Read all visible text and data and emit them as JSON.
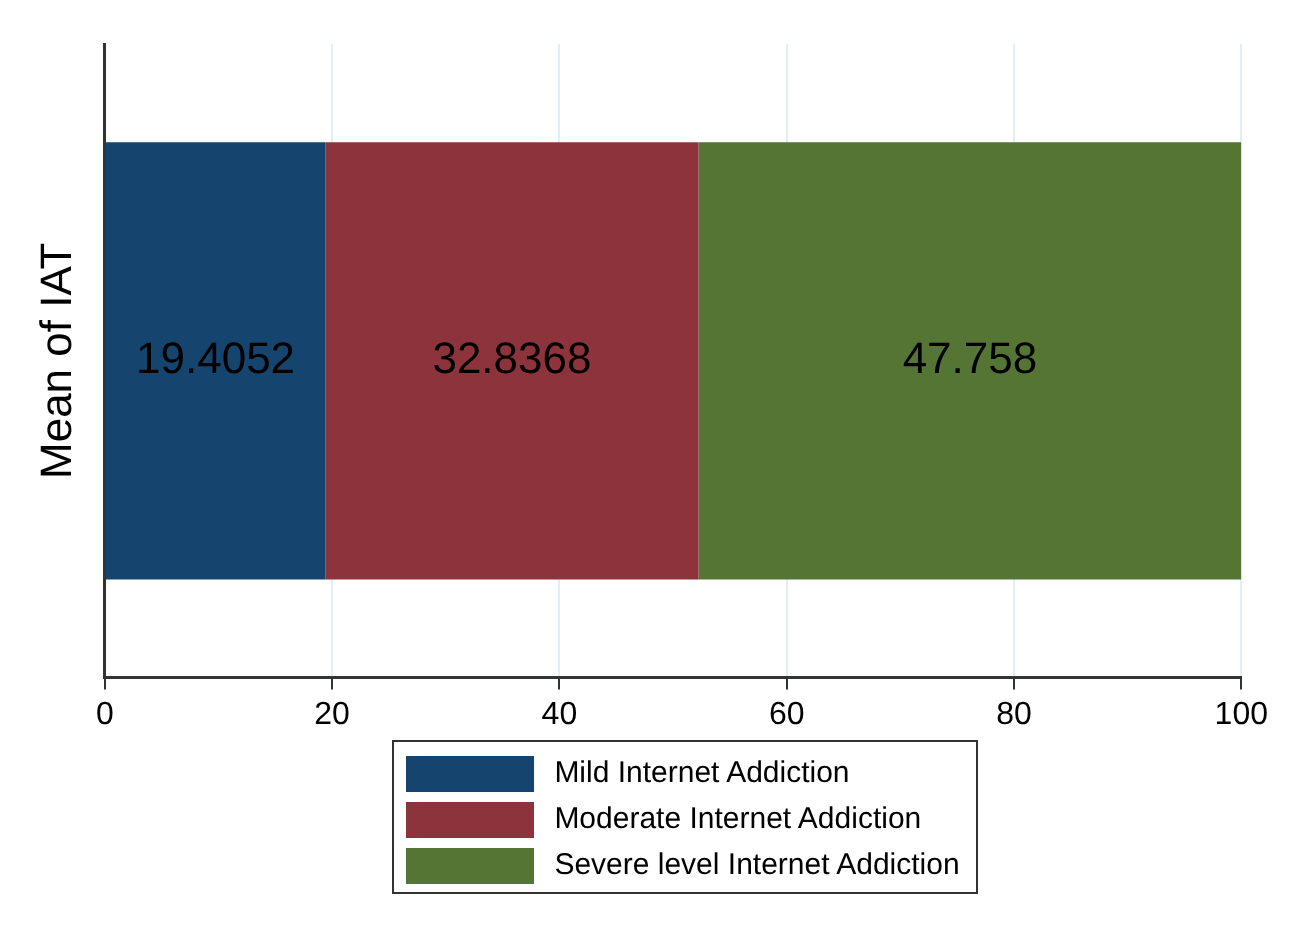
{
  "chart_data": {
    "type": "bar",
    "orientation": "horizontal",
    "stacked": true,
    "ylabel": "Mean of IAT",
    "categories": [
      null
    ],
    "series": [
      {
        "name": "Mild Internet Addiction",
        "color": "#15456e",
        "values": [
          19.4052
        ]
      },
      {
        "name": "Moderate Internet Addiction",
        "color": "#8d333b",
        "values": [
          32.8368
        ]
      },
      {
        "name": "Severe level Internet Addiction",
        "color": "#557535",
        "values": [
          47.758
        ]
      }
    ],
    "xlim": [
      0,
      100
    ],
    "xticks": [
      0,
      20,
      40,
      60,
      80,
      100
    ],
    "grid": "x",
    "legend": "bottom",
    "data_labels": true
  }
}
